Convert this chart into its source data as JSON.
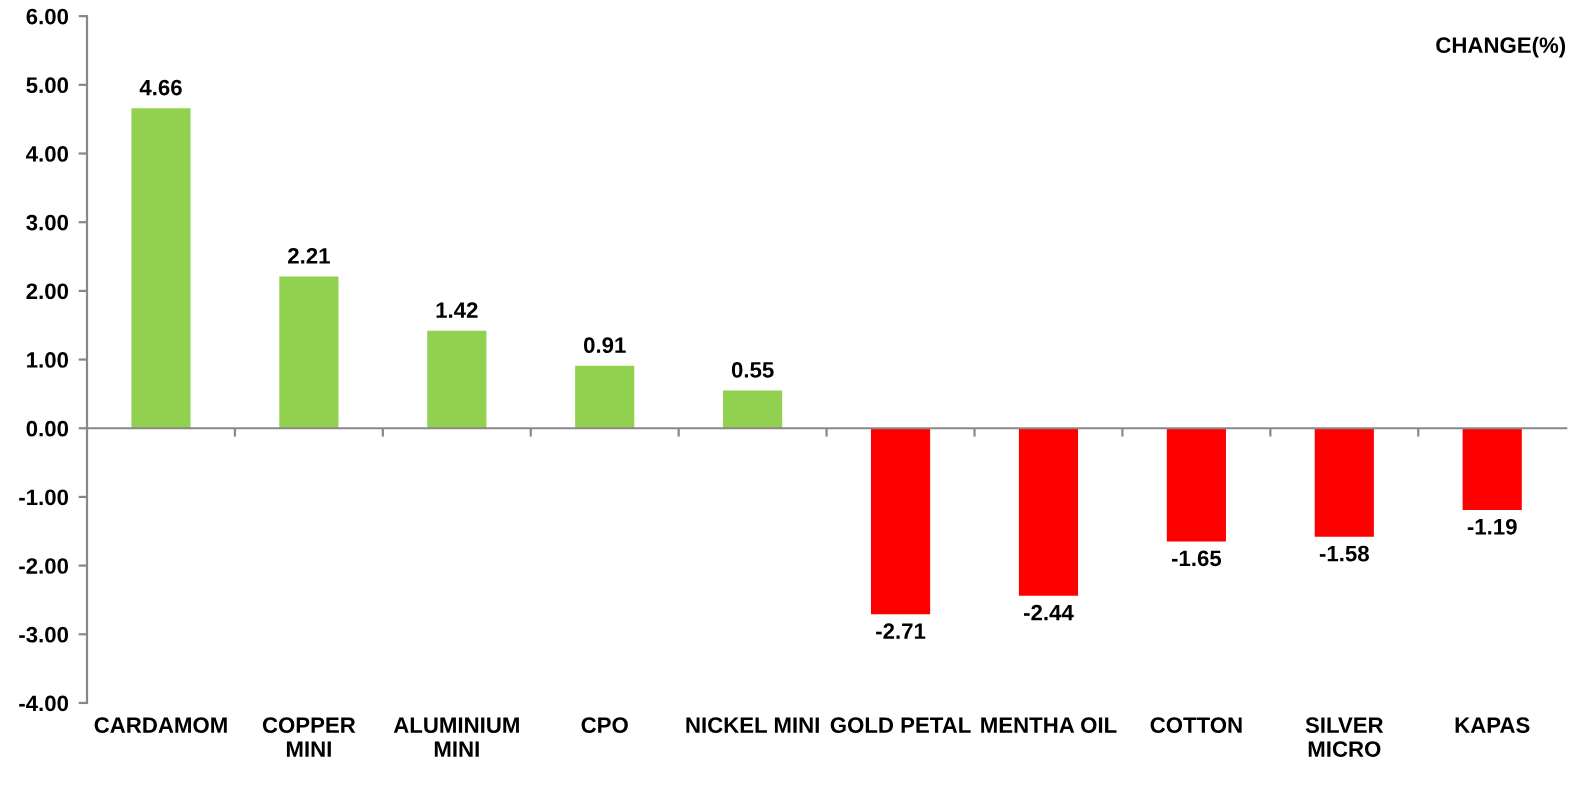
{
  "chart_data": {
    "type": "bar",
    "title": "CHANGE(%)",
    "categories": [
      "CARDAMOM",
      "COPPER\nMINI",
      "ALUMINIUM\nMINI",
      "CPO",
      "NICKEL MINI",
      "GOLD PETAL",
      "MENTHA OIL",
      "COTTON",
      "SILVER\nMICRO",
      "KAPAS"
    ],
    "values": [
      4.66,
      2.21,
      1.42,
      0.91,
      0.55,
      -2.71,
      -2.44,
      -1.65,
      -1.58,
      -1.19
    ],
    "value_labels": [
      "4.66",
      "2.21",
      "1.42",
      "0.91",
      "0.55",
      "-2.71",
      "-2.44",
      "-1.65",
      "-1.58",
      "-1.19"
    ],
    "colors": [
      "#92d050",
      "#92d050",
      "#92d050",
      "#92d050",
      "#92d050",
      "#ff0000",
      "#ff0000",
      "#ff0000",
      "#ff0000",
      "#ff0000"
    ],
    "ylim": [
      -4,
      6
    ],
    "yticks": [
      {
        "value": -4,
        "label": "-4.00"
      },
      {
        "value": -3,
        "label": "-3.00"
      },
      {
        "value": -2,
        "label": "-2.00"
      },
      {
        "value": -1,
        "label": "-1.00"
      },
      {
        "value": 0,
        "label": "0.00"
      },
      {
        "value": 1,
        "label": "1.00"
      },
      {
        "value": 2,
        "label": "2.00"
      },
      {
        "value": 3,
        "label": "3.00"
      },
      {
        "value": 4,
        "label": "4.00"
      },
      {
        "value": 5,
        "label": "5.00"
      },
      {
        "value": 6,
        "label": "6.00"
      }
    ],
    "tick_labels": "y"
  }
}
